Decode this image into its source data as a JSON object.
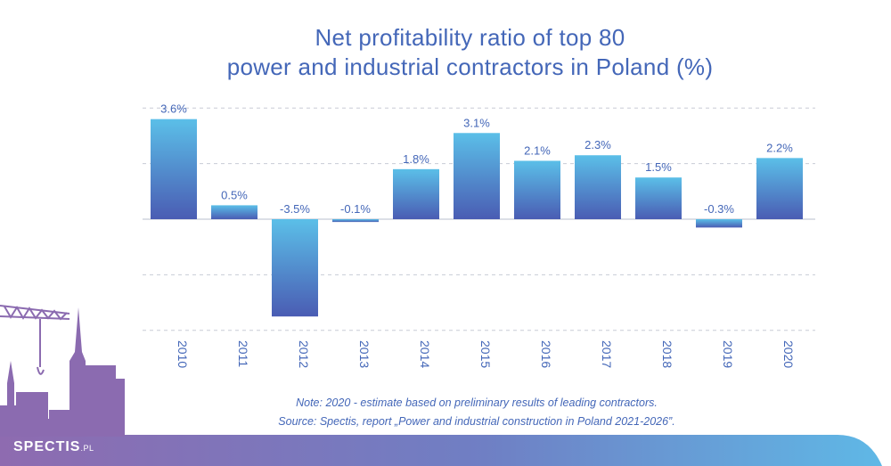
{
  "header": {
    "title_line1": "Net profitability ratio of top 80",
    "title_line2": "power and industrial contractors in Poland (%)"
  },
  "footer": {
    "note": "Note: 2020 - estimate based on preliminary results of leading contractors.",
    "source": "Source: Spectis, report „Power and industrial construction in Poland 2021-2026”.",
    "brand": "SPECTIS",
    "brand_suffix": ".PL"
  },
  "colors": {
    "title": "#4467b8",
    "bar_top": "#5bbfe8",
    "bar_bottom": "#4a5cb3",
    "grid": "#c8ccd6",
    "label": "#4467b8",
    "band_left": "#8e6bb0",
    "band_right": "#5fb8e6"
  },
  "chart_data": {
    "type": "bar",
    "title": "Net profitability ratio of top 80 power and industrial contractors in Poland (%)",
    "categories": [
      "2010",
      "2011",
      "2012",
      "2013",
      "2014",
      "2015",
      "2016",
      "2017",
      "2018",
      "2019",
      "2020"
    ],
    "values": [
      3.6,
      0.5,
      -3.5,
      -0.1,
      1.8,
      3.1,
      2.1,
      2.3,
      1.5,
      -0.3,
      2.2
    ],
    "value_labels": [
      "3.6%",
      "0.5%",
      "-3.5%",
      "-0.1%",
      "1.8%",
      "3.1%",
      "2.1%",
      "2.3%",
      "1.5%",
      "-0.3%",
      "2.2%"
    ],
    "ylim": [
      -4,
      4
    ],
    "grid": true,
    "xlabel": "",
    "ylabel": ""
  }
}
